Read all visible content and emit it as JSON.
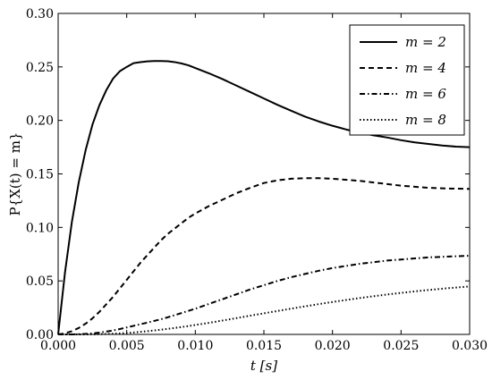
{
  "chart_data": {
    "type": "line",
    "xlabel": "t [s]",
    "ylabel": "P{X(t) = m}",
    "xlim": [
      0,
      0.03
    ],
    "ylim": [
      0,
      0.3
    ],
    "xticks": [
      "0.000",
      "0.005",
      "0.010",
      "0.015",
      "0.020",
      "0.025",
      "0.030"
    ],
    "yticks": [
      "0.00",
      "0.05",
      "0.10",
      "0.15",
      "0.20",
      "0.25",
      "0.30"
    ],
    "legend_position": "top-right",
    "grid": false,
    "x": [
      0,
      0.0005,
      0.001,
      0.0015,
      0.002,
      0.0025,
      0.003,
      0.0035,
      0.004,
      0.0045,
      0.005,
      0.0055,
      0.006,
      0.0065,
      0.007,
      0.0075,
      0.008,
      0.0085,
      0.009,
      0.0095,
      0.01,
      0.011,
      0.012,
      0.013,
      0.014,
      0.015,
      0.016,
      0.017,
      0.018,
      0.019,
      0.02,
      0.021,
      0.022,
      0.023,
      0.024,
      0.025,
      0.026,
      0.027,
      0.028,
      0.029,
      0.03
    ],
    "series": [
      {
        "name": "m = 2",
        "style": "solid",
        "values": [
          0,
          0.058,
          0.105,
          0.142,
          0.172,
          0.196,
          0.214,
          0.228,
          0.239,
          0.246,
          0.25,
          0.2535,
          0.2545,
          0.2552,
          0.2555,
          0.2555,
          0.2553,
          0.2545,
          0.2532,
          0.2515,
          0.249,
          0.244,
          0.2385,
          0.2325,
          0.2265,
          0.2205,
          0.2145,
          0.209,
          0.2035,
          0.199,
          0.195,
          0.1915,
          0.1885,
          0.186,
          0.184,
          0.1815,
          0.1795,
          0.178,
          0.1765,
          0.1755,
          0.175
        ]
      },
      {
        "name": "m = 4",
        "style": "dashed",
        "values": [
          0,
          0.001,
          0.003,
          0.006,
          0.01,
          0.015,
          0.021,
          0.028,
          0.035,
          0.043,
          0.051,
          0.059,
          0.067,
          0.074,
          0.081,
          0.088,
          0.094,
          0.099,
          0.104,
          0.109,
          0.113,
          0.12,
          0.126,
          0.132,
          0.137,
          0.1415,
          0.144,
          0.1455,
          0.146,
          0.146,
          0.1455,
          0.1445,
          0.1435,
          0.142,
          0.1405,
          0.139,
          0.138,
          0.137,
          0.1365,
          0.1362,
          0.136
        ]
      },
      {
        "name": "m = 6",
        "style": "dashdot",
        "values": [
          0,
          0,
          0,
          0.0002,
          0.0005,
          0.001,
          0.0017,
          0.0026,
          0.0037,
          0.005,
          0.0065,
          0.008,
          0.0095,
          0.011,
          0.0126,
          0.0142,
          0.016,
          0.018,
          0.02,
          0.022,
          0.024,
          0.0285,
          0.033,
          0.0375,
          0.042,
          0.046,
          0.05,
          0.0535,
          0.0565,
          0.0595,
          0.062,
          0.064,
          0.066,
          0.0675,
          0.069,
          0.07,
          0.071,
          0.072,
          0.0725,
          0.073,
          0.0735
        ]
      },
      {
        "name": "m = 8",
        "style": "dotted",
        "values": [
          0,
          0,
          0,
          0,
          0,
          0.0001,
          0.0002,
          0.0004,
          0.0006,
          0.0009,
          0.0013,
          0.0018,
          0.0024,
          0.003,
          0.0037,
          0.0044,
          0.0052,
          0.006,
          0.0069,
          0.0078,
          0.0088,
          0.0108,
          0.013,
          0.0152,
          0.0175,
          0.0197,
          0.0219,
          0.0241,
          0.0262,
          0.0283,
          0.0303,
          0.0322,
          0.034,
          0.0357,
          0.0373,
          0.0388,
          0.0402,
          0.0415,
          0.0427,
          0.0438,
          0.0448
        ]
      }
    ]
  }
}
